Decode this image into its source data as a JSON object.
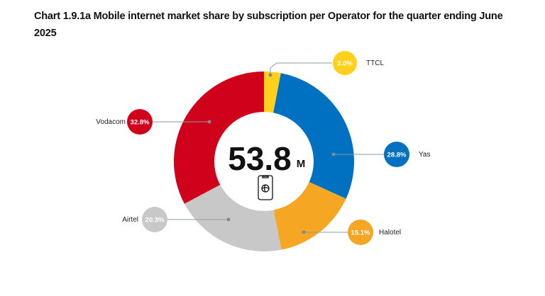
{
  "chart_data": {
    "type": "pie",
    "donut": true,
    "title": "Chart 1.9.1a Mobile internet market share by subscription per Operator for the quarter ending June 2025",
    "center_label": {
      "value": "53.8",
      "unit": "M",
      "icon": "mobile-phone-internet-icon"
    },
    "slices": [
      {
        "name": "TTCL",
        "value": 3.0,
        "label": "3.0%",
        "color": "#FFD11A"
      },
      {
        "name": "Yas",
        "value": 28.8,
        "label": "28.8%",
        "color": "#0070C0"
      },
      {
        "name": "Halotel",
        "value": 15.1,
        "label": "15.1%",
        "color": "#F5A623"
      },
      {
        "name": "Airtel",
        "value": 20.3,
        "label": "20.3%",
        "color": "#C8C8C8"
      },
      {
        "name": "Vodacom",
        "value": 32.8,
        "label": "32.8%",
        "color": "#D0021B"
      }
    ]
  }
}
